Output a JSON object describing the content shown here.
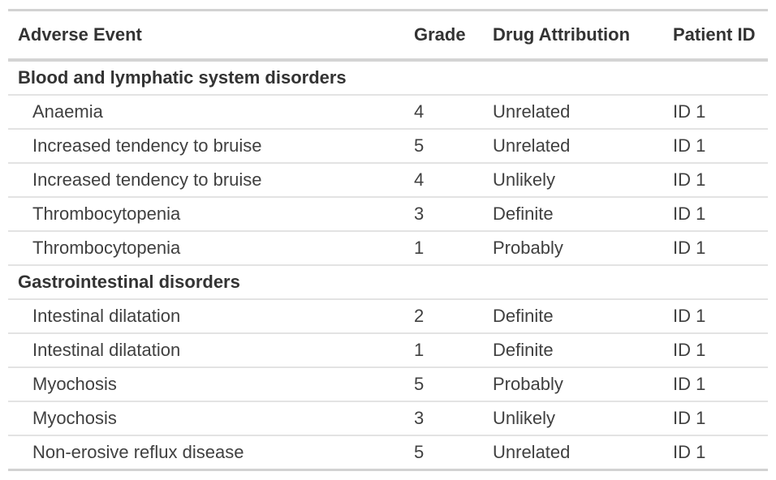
{
  "table": {
    "columns": [
      "Adverse Event",
      "Grade",
      "Drug Attribution",
      "Patient ID"
    ],
    "groups": [
      {
        "label": "Blood and lymphatic system disorders",
        "rows": [
          {
            "adverse_event": "Anaemia",
            "grade": "4",
            "drug_attribution": "Unrelated",
            "patient_id": "ID 1"
          },
          {
            "adverse_event": "Increased tendency to bruise",
            "grade": "5",
            "drug_attribution": "Unrelated",
            "patient_id": "ID 1"
          },
          {
            "adverse_event": "Increased tendency to bruise",
            "grade": "4",
            "drug_attribution": "Unlikely",
            "patient_id": "ID 1"
          },
          {
            "adverse_event": "Thrombocytopenia",
            "grade": "3",
            "drug_attribution": "Definite",
            "patient_id": "ID 1"
          },
          {
            "adverse_event": "Thrombocytopenia",
            "grade": "1",
            "drug_attribution": "Probably",
            "patient_id": "ID 1"
          }
        ]
      },
      {
        "label": "Gastrointestinal disorders",
        "rows": [
          {
            "adverse_event": "Intestinal dilatation",
            "grade": "2",
            "drug_attribution": "Definite",
            "patient_id": "ID 1"
          },
          {
            "adverse_event": "Intestinal dilatation",
            "grade": "1",
            "drug_attribution": "Definite",
            "patient_id": "ID 1"
          },
          {
            "adverse_event": "Myochosis",
            "grade": "5",
            "drug_attribution": "Probably",
            "patient_id": "ID 1"
          },
          {
            "adverse_event": "Myochosis",
            "grade": "3",
            "drug_attribution": "Unlikely",
            "patient_id": "ID 1"
          },
          {
            "adverse_event": "Non-erosive reflux disease",
            "grade": "5",
            "drug_attribution": "Unrelated",
            "patient_id": "ID 1"
          }
        ]
      }
    ],
    "colors": {
      "background": "#ffffff",
      "header_text": "#333333",
      "body_text": "#404040",
      "border_strong": "#d2d2d2",
      "border_light": "#e3e3e3"
    }
  }
}
